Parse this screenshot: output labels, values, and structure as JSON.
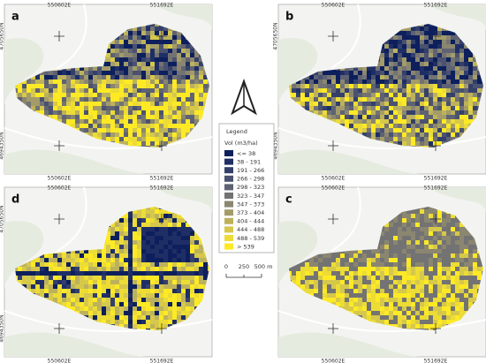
{
  "panels": [
    {
      "label": "a",
      "x_labels": [
        "550602E",
        "551692E"
      ],
      "y_labels": [
        "4705650N",
        "4694350N"
      ]
    },
    {
      "label": "b",
      "x_labels": [
        "550602E",
        "551692E"
      ],
      "y_labels": [
        "4705650N",
        "4694350N"
      ]
    },
    {
      "label": "d",
      "x_labels": [
        "550602E",
        "551692E"
      ],
      "y_labels": [
        "4705650N",
        "4694350N"
      ]
    },
    {
      "label": "c",
      "x_labels": [
        "550602E",
        "551692E"
      ],
      "y_labels": [
        "4705650N",
        "4694350N"
      ]
    }
  ],
  "legend": {
    "title": "Legend",
    "heading": "Vol (m3/ha)",
    "items": [
      {
        "label": "<= 38",
        "color": "#0d1f5c"
      },
      {
        "label": "38 - 191",
        "color": "#1f2f66"
      },
      {
        "label": "191 - 266",
        "color": "#34406b"
      },
      {
        "label": "266 - 298",
        "color": "#4a5270"
      },
      {
        "label": "298 - 323",
        "color": "#5e6272"
      },
      {
        "label": "323 - 347",
        "color": "#737373"
      },
      {
        "label": "347 - 373",
        "color": "#8a8670"
      },
      {
        "label": "373 - 404",
        "color": "#a39c69"
      },
      {
        "label": "404 - 444",
        "color": "#bdb25c"
      },
      {
        "label": "444 - 488",
        "color": "#d6c84a"
      },
      {
        "label": "488 - 539",
        "color": "#ecdc35"
      },
      {
        "label": "> 539",
        "color": "#fdea25"
      }
    ]
  },
  "scale_bar": {
    "labels": [
      "0",
      "250",
      "500 m"
    ]
  }
}
